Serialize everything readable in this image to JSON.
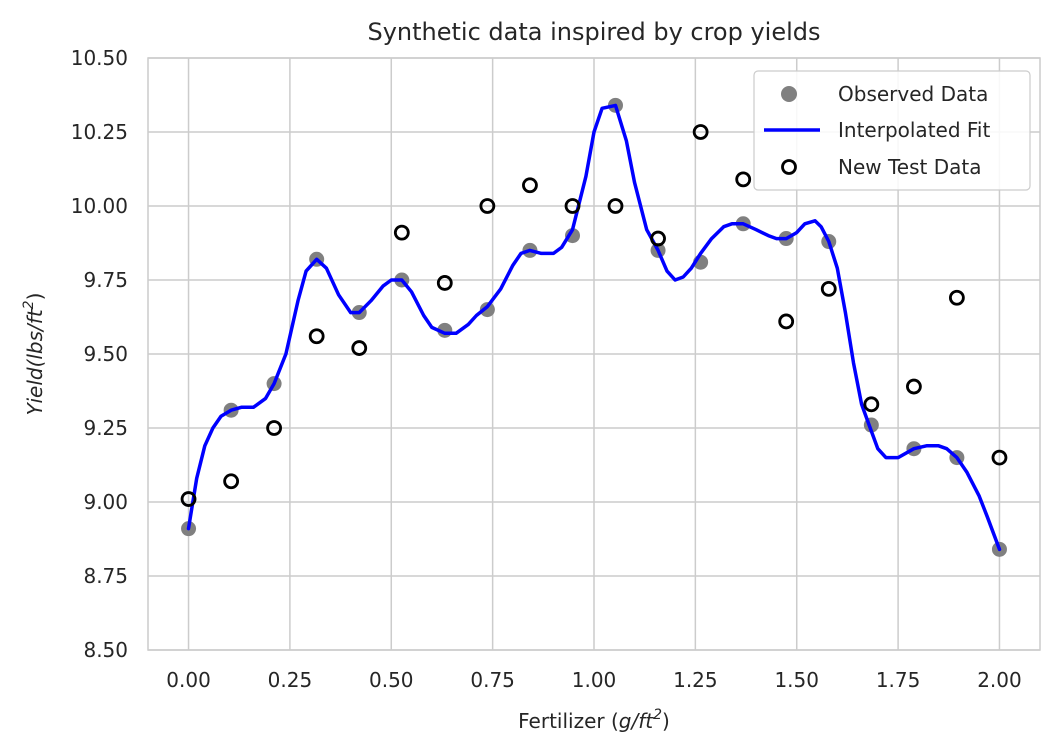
{
  "chart_data": {
    "type": "scatter",
    "title": "Synthetic data inspired by crop yields",
    "xlabel": {
      "main": "Fertilizer (",
      "math": "g/ft",
      "sup": "2",
      "close": ")"
    },
    "ylabel": {
      "math": "Yield(lbs/ft",
      "sup": "2",
      "close": ")"
    },
    "xlim": [
      -0.1,
      2.1
    ],
    "ylim": [
      8.5,
      10.5
    ],
    "xticks": [
      0.0,
      0.25,
      0.5,
      0.75,
      1.0,
      1.25,
      1.5,
      1.75,
      2.0
    ],
    "xtick_labels": [
      "0.00",
      "0.25",
      "0.50",
      "0.75",
      "1.00",
      "1.25",
      "1.50",
      "1.75",
      "2.00"
    ],
    "yticks": [
      8.5,
      8.75,
      9.0,
      9.25,
      9.5,
      9.75,
      10.0,
      10.25,
      10.5
    ],
    "ytick_labels": [
      "8.50",
      "8.75",
      "9.00",
      "9.25",
      "9.50",
      "9.75",
      "10.00",
      "10.25",
      "10.50"
    ],
    "grid": true,
    "legend_position": "top-right",
    "series": [
      {
        "name": "Observed Data",
        "kind": "scatter",
        "color": "#808080",
        "x": [
          0.0,
          0.105,
          0.211,
          0.316,
          0.421,
          0.526,
          0.632,
          0.737,
          0.842,
          0.947,
          1.053,
          1.158,
          1.263,
          1.368,
          1.474,
          1.579,
          1.684,
          1.789,
          1.895,
          2.0
        ],
        "y": [
          8.91,
          9.31,
          9.4,
          9.82,
          9.64,
          9.75,
          9.58,
          9.65,
          9.85,
          9.9,
          10.34,
          9.85,
          9.81,
          9.94,
          9.89,
          9.88,
          9.26,
          9.18,
          9.15,
          8.84
        ]
      },
      {
        "name": "Interpolated Fit",
        "kind": "line",
        "color": "#0000ff",
        "x": [
          0.0,
          0.02,
          0.04,
          0.06,
          0.08,
          0.105,
          0.13,
          0.16,
          0.19,
          0.211,
          0.24,
          0.27,
          0.29,
          0.316,
          0.34,
          0.37,
          0.4,
          0.421,
          0.45,
          0.48,
          0.5,
          0.526,
          0.55,
          0.58,
          0.6,
          0.632,
          0.66,
          0.69,
          0.71,
          0.737,
          0.77,
          0.8,
          0.82,
          0.842,
          0.87,
          0.9,
          0.92,
          0.947,
          0.98,
          1.0,
          1.02,
          1.053,
          1.08,
          1.1,
          1.13,
          1.158,
          1.18,
          1.2,
          1.22,
          1.24,
          1.263,
          1.29,
          1.32,
          1.34,
          1.368,
          1.4,
          1.43,
          1.45,
          1.474,
          1.5,
          1.52,
          1.545,
          1.56,
          1.579,
          1.6,
          1.62,
          1.64,
          1.66,
          1.684,
          1.7,
          1.72,
          1.75,
          1.789,
          1.82,
          1.85,
          1.87,
          1.895,
          1.92,
          1.95,
          1.97,
          2.0
        ],
        "y": [
          8.91,
          9.08,
          9.19,
          9.25,
          9.29,
          9.31,
          9.32,
          9.32,
          9.35,
          9.4,
          9.5,
          9.68,
          9.78,
          9.82,
          9.79,
          9.7,
          9.64,
          9.64,
          9.68,
          9.73,
          9.75,
          9.75,
          9.71,
          9.63,
          9.59,
          9.57,
          9.57,
          9.6,
          9.63,
          9.66,
          9.72,
          9.8,
          9.84,
          9.85,
          9.84,
          9.84,
          9.86,
          9.92,
          10.1,
          10.25,
          10.33,
          10.34,
          10.22,
          10.08,
          9.92,
          9.85,
          9.78,
          9.75,
          9.76,
          9.79,
          9.84,
          9.89,
          9.93,
          9.94,
          9.94,
          9.92,
          9.9,
          9.89,
          9.89,
          9.91,
          9.94,
          9.95,
          9.93,
          9.88,
          9.79,
          9.64,
          9.47,
          9.33,
          9.24,
          9.18,
          9.15,
          9.15,
          9.18,
          9.19,
          9.19,
          9.18,
          9.15,
          9.1,
          9.02,
          8.95,
          8.84
        ]
      },
      {
        "name": "New Test Data",
        "kind": "scatter-hollow",
        "color": "#000000",
        "x": [
          0.0,
          0.105,
          0.211,
          0.316,
          0.421,
          0.526,
          0.632,
          0.737,
          0.842,
          0.947,
          1.053,
          1.158,
          1.263,
          1.368,
          1.474,
          1.579,
          1.684,
          1.789,
          1.895,
          2.0
        ],
        "y": [
          9.01,
          9.07,
          9.25,
          9.56,
          9.52,
          9.91,
          9.74,
          10.0,
          10.07,
          10.0,
          10.0,
          9.89,
          10.25,
          10.09,
          9.61,
          9.72,
          9.33,
          9.39,
          9.69,
          9.15
        ]
      }
    ]
  }
}
